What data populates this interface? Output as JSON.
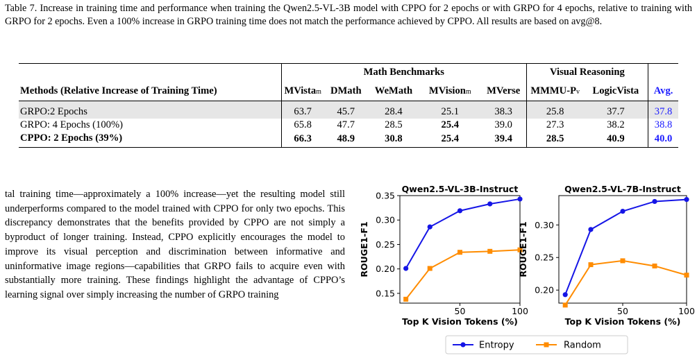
{
  "caption": "Table 7. Increase in training time and performance when training the Qwen2.5-VL-3B model with CPPO for 2 epochs or with GRPO for 4 epochs, relative to training with GRPO for 2 epochs. Even a 100% increase in GRPO training time does not match the performance achieved by CPPO. All results are based on avg@8.",
  "table": {
    "group_math": "Math Benchmarks",
    "group_visual": "Visual Reasoning",
    "method_header": "Methods (Relative Increase of Training Time)",
    "col_mvista": "MVista",
    "col_mvista_sub": "m",
    "col_dmath": "DMath",
    "col_wemath": "WeMath",
    "col_mvision": "MVision",
    "col_mvision_sub": "m",
    "col_mverse": "MVerse",
    "col_mmmu": "MMMU-P",
    "col_mmmu_sub": "v",
    "col_logic": "LogicVista",
    "col_avg": "Avg.",
    "rows": [
      {
        "method": "GRPO:2 Epochs",
        "values": [
          "63.7",
          "45.7",
          "28.4",
          "25.1",
          "38.3",
          "25.8",
          "37.7"
        ],
        "avg": "37.8"
      },
      {
        "method": "GRPO: 4 Epochs (100%)",
        "values": [
          "65.8",
          "47.7",
          "28.5",
          "25.4",
          "39.0",
          "27.3",
          "38.2"
        ],
        "avg": "38.8"
      },
      {
        "method": "CPPO: 2 Epochs (39%)",
        "values": [
          "66.3",
          "48.9",
          "30.8",
          "25.4",
          "39.4",
          "28.5",
          "40.9"
        ],
        "avg": "40.0"
      }
    ]
  },
  "body_text": "tal training time—approximately a 100% increase—yet the resulting model still underperforms compared to the model trained with CPPO for only two epochs. This discrepancy demonstrates that the benefits provided by CPPO are not simply a byproduct of longer training. Instead, CPPO explicitly encourages the model to improve its visual perception and discrimination between informative and uninformative image regions—capabilities that GRPO fails to acquire even with substantially more training. These findings highlight the advantage of CPPO’s learning signal over simply increasing the number of GRPO training",
  "colors": {
    "entropy": "#1515e6",
    "random": "#ff8c00",
    "avg_text": "#1a1aff"
  },
  "chart_data": [
    {
      "type": "line",
      "title": "Qwen2.5-VL-3B-Instruct",
      "xlabel": "Top K Vision Tokens (%)",
      "ylabel": "ROUGE1-F1",
      "xlim": [
        0,
        100
      ],
      "ylim": [
        0.13,
        0.35
      ],
      "xticks": [
        50,
        100
      ],
      "yticks": [
        0.15,
        0.2,
        0.25,
        0.3,
        0.35
      ],
      "ytick_labels": [
        "0.15",
        "0.20",
        "0.25",
        "0.30",
        "0.35"
      ],
      "x": [
        5,
        25,
        50,
        75,
        100
      ],
      "series": [
        {
          "name": "Entropy",
          "values": [
            0.201,
            0.286,
            0.319,
            0.333,
            0.343
          ]
        },
        {
          "name": "Random",
          "values": [
            0.138,
            0.201,
            0.234,
            0.236,
            0.239
          ]
        }
      ]
    },
    {
      "type": "line",
      "title": "Qwen2.5-VL-7B-Instruct",
      "xlabel": "Top K Vision Tokens (%)",
      "ylabel": "ROUGE1-F1",
      "xlim": [
        0,
        100
      ],
      "ylim": [
        0.18,
        0.345
      ],
      "xticks": [
        50,
        100
      ],
      "yticks": [
        0.2,
        0.25,
        0.3
      ],
      "ytick_labels": [
        "0.20",
        "0.25",
        "0.30"
      ],
      "x": [
        5,
        25,
        50,
        75,
        100
      ],
      "series": [
        {
          "name": "Entropy",
          "values": [
            0.193,
            0.293,
            0.321,
            0.336,
            0.339
          ]
        },
        {
          "name": "Random",
          "values": [
            0.177,
            0.239,
            0.245,
            0.237,
            0.223
          ]
        }
      ]
    }
  ],
  "legend": {
    "entropy": "Entropy",
    "random": "Random"
  }
}
